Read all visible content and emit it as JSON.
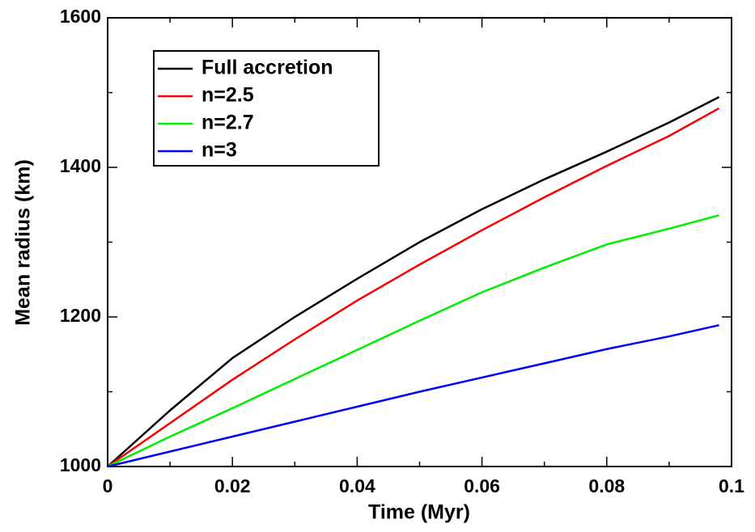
{
  "chart_data": {
    "type": "line",
    "xlabel": "Time (Myr)",
    "ylabel": "Mean radius (km)",
    "x": [
      0,
      0.01,
      0.02,
      0.03,
      0.04,
      0.05,
      0.06,
      0.07,
      0.08,
      0.09,
      0.098
    ],
    "series": [
      {
        "name": "Full accretion",
        "color": "#000000",
        "values": [
          1000,
          1075,
          1145,
          1200,
          1251,
          1300,
          1344,
          1384,
          1421,
          1460,
          1494
        ]
      },
      {
        "name": "n=2.5",
        "color": "#ff0000",
        "values": [
          1000,
          1058,
          1116,
          1170,
          1222,
          1270,
          1316,
          1360,
          1402,
          1442,
          1479
        ]
      },
      {
        "name": "n=2.7",
        "color": "#00ee00",
        "values": [
          1000,
          1040,
          1078,
          1117,
          1156,
          1195,
          1233,
          1266,
          1297,
          1318,
          1336
        ]
      },
      {
        "name": "n=3",
        "color": "#0000ff",
        "values": [
          1000,
          1020,
          1040,
          1060,
          1080,
          1100,
          1119,
          1138,
          1157,
          1174,
          1189
        ]
      }
    ],
    "xlim": [
      0,
      0.1
    ],
    "xticks": [
      0,
      0.02,
      0.04,
      0.06,
      0.08,
      0.1
    ],
    "xminorticks": [
      0.01,
      0.03,
      0.05,
      0.07,
      0.09
    ],
    "ylim": [
      1000,
      1600
    ],
    "yticks": [
      1000,
      1200,
      1400,
      1600
    ],
    "yminorticks": [
      1100,
      1300,
      1500
    ],
    "legend": "upper-left",
    "grid": false
  }
}
